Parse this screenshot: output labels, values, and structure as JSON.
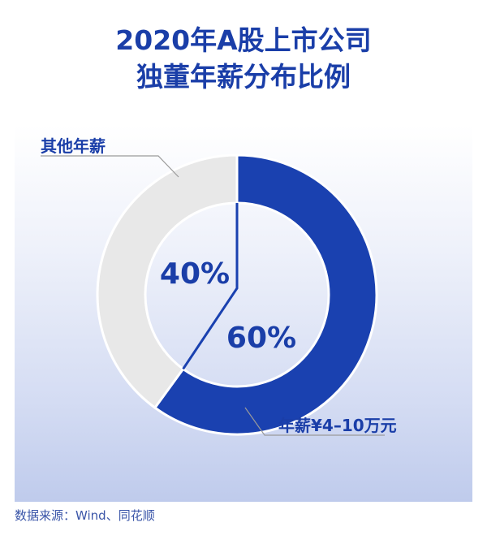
{
  "chart_data": {
    "type": "pie",
    "donut": true,
    "title": [
      "2020年A股上市公司",
      "独董年薪分布比例"
    ],
    "slices": [
      {
        "label": "年薪¥4–10万元",
        "value": 60,
        "value_label": "60%",
        "color": "#1a41b0"
      },
      {
        "label": "其他年薪",
        "value": 40,
        "value_label": "40%",
        "color": "#e8e8e8"
      }
    ],
    "start": "12 o'clock, clockwise",
    "source": "数据来源：Wind、同花顺"
  }
}
